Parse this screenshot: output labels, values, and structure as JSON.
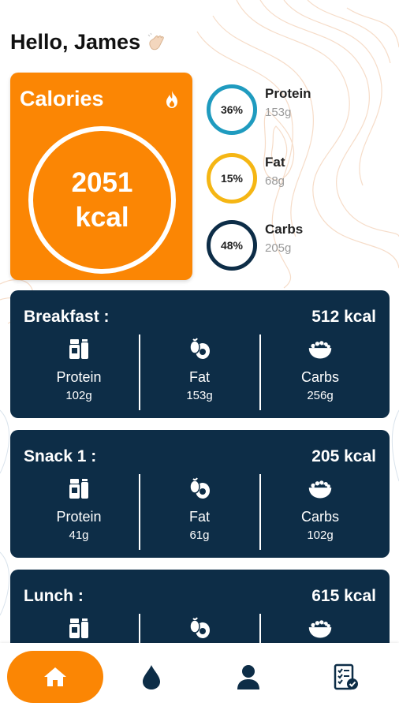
{
  "greeting": {
    "text": "Hello, James",
    "icon": "waving-hand-icon"
  },
  "calories": {
    "title": "Calories",
    "value": "2051",
    "unit": "kcal",
    "icon": "fire-icon",
    "color": "#fb8604"
  },
  "macros": [
    {
      "name": "Protein",
      "percent": "36%",
      "amount": "153g",
      "color": "#1f9bbf"
    },
    {
      "name": "Fat",
      "percent": "15%",
      "amount": "68g",
      "color": "#f5b614"
    },
    {
      "name": "Carbs",
      "percent": "48%",
      "amount": "205g",
      "color": "#0d2d47"
    }
  ],
  "meals": [
    {
      "title": "Breakfast :",
      "kcal": "512 kcal",
      "protein": {
        "label": "Protein",
        "value": "102g"
      },
      "fat": {
        "label": "Fat",
        "value": "153g"
      },
      "carbs": {
        "label": "Carbs",
        "value": "256g"
      }
    },
    {
      "title": "Snack 1 :",
      "kcal": "205 kcal",
      "protein": {
        "label": "Protein",
        "value": "41g"
      },
      "fat": {
        "label": "Fat",
        "value": "61g"
      },
      "carbs": {
        "label": "Carbs",
        "value": "102g"
      }
    },
    {
      "title": "Lunch :",
      "kcal": "615 kcal"
    }
  ],
  "nav": {
    "items": [
      "home-icon",
      "water-drop-icon",
      "profile-icon",
      "checklist-icon"
    ],
    "active": "home-icon",
    "accent": "#fb8604",
    "icon_color": "#0d2d47"
  }
}
